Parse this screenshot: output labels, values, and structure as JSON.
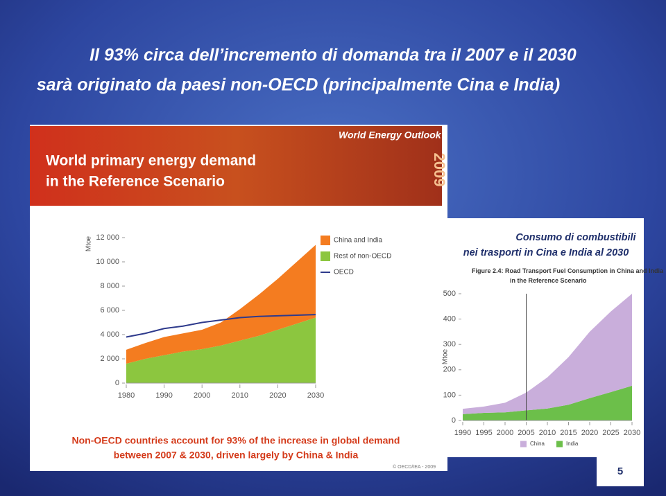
{
  "slide": {
    "title_lines": [
      "Il 93% circa dell’incremento di domanda tra il 2007 e il 2030",
      "sarà originato da paesi non-OECD (principalmente Cina e India)"
    ],
    "banner": {
      "brand": "World Energy Outlook",
      "edition": "2009",
      "heading_lines": [
        "World primary energy demand",
        "in the Reference Scenario"
      ]
    },
    "footer_lines": [
      "Non-OECD countries account for 93% of the increase in global demand",
      "between 2007 & 2030, driven largely by China & India"
    ],
    "copyright": "© OECD/IEA - 2009",
    "caption_lines": [
      "Consumo di combustibili",
      "nei trasporti in Cina e India al 2030"
    ],
    "page_number": "5"
  },
  "chart_data": [
    {
      "type": "area",
      "y_label": "Mtoe",
      "x": [
        1980,
        1985,
        1990,
        1995,
        2000,
        2005,
        2010,
        2015,
        2020,
        2025,
        2030
      ],
      "series": [
        {
          "name": "China and India",
          "color": "#f47c20",
          "values": [
            1150,
            1300,
            1500,
            1500,
            1600,
            1900,
            2600,
            3400,
            4200,
            5100,
            6000
          ]
        },
        {
          "name": "Rest of non-OECD",
          "color": "#8cc63f",
          "values": [
            1600,
            2000,
            2300,
            2600,
            2800,
            3100,
            3500,
            3900,
            4400,
            4900,
            5400
          ]
        },
        {
          "name": "OECD",
          "type": "line",
          "color": "#2e3a8c",
          "values": [
            3800,
            4100,
            4500,
            4700,
            5000,
            5200,
            5400,
            5500,
            5550,
            5600,
            5650
          ]
        }
      ],
      "xlim": [
        1980,
        2030
      ],
      "xticks": [
        1980,
        1990,
        2000,
        2010,
        2020,
        2030
      ],
      "ylim": [
        0,
        12000
      ],
      "yticks": [
        0,
        {
          "value": 2000,
          "label": "2 000"
        },
        {
          "value": 4000,
          "label": "4 000"
        },
        {
          "value": 6000,
          "label": "6 000"
        },
        {
          "value": 8000,
          "label": "8 000"
        },
        {
          "value": 10000,
          "label": "10 000"
        },
        {
          "value": 12000,
          "label": "12 000"
        }
      ]
    },
    {
      "type": "area",
      "title": "Figure 2.4: Road Transport Fuel Consumption in China and India in the Reference Scenario",
      "y_label": "Mtoe",
      "x": [
        1990,
        1995,
        2000,
        2005,
        2010,
        2015,
        2020,
        2025,
        2030
      ],
      "series": [
        {
          "name": "China",
          "color": "#c9aedb",
          "values": [
            21,
            25,
            38,
            70,
            123,
            188,
            262,
            318,
            363
          ]
        },
        {
          "name": "India",
          "color": "#6cbf4a",
          "values": [
            25,
            30,
            32,
            40,
            47,
            62,
            88,
            112,
            137
          ]
        }
      ],
      "xlim": [
        1990,
        2030
      ],
      "xticks": [
        1990,
        1995,
        2000,
        2005,
        2010,
        2015,
        2020,
        2025,
        2030
      ],
      "ylim": [
        0,
        500
      ],
      "yticks": [
        0,
        100,
        200,
        300,
        400,
        500
      ],
      "vline_x": 2005
    }
  ]
}
